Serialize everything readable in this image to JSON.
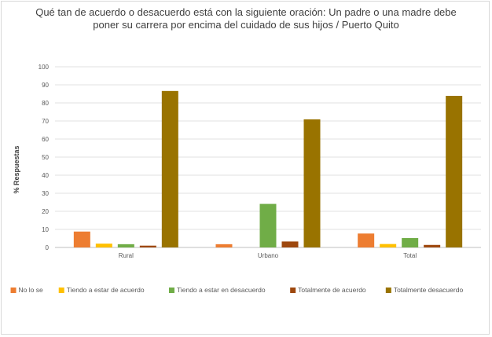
{
  "chart_data": {
    "type": "bar",
    "title": "Qué tan de acuerdo o desacuerdo está con la siguiente oración: Un padre o una madre debe poner su carrera por encima del cuidado de sus hijos / Puerto Quito",
    "xlabel": "",
    "ylabel": "% Respuestas",
    "ylim": [
      0,
      100
    ],
    "yticks": [
      0,
      10,
      20,
      30,
      40,
      50,
      60,
      70,
      80,
      90,
      100
    ],
    "grid": true,
    "legend_position": "bottom",
    "categories": [
      "Rural",
      "Urbano",
      "Total"
    ],
    "series": [
      {
        "name": "No lo se",
        "color": "#ed7d31",
        "values": [
          8.8,
          1.8,
          7.7
        ]
      },
      {
        "name": "Tiendo a estar de acuerdo",
        "color": "#ffc000",
        "values": [
          2.1,
          0,
          1.9
        ]
      },
      {
        "name": "Tiendo a estar en desacuerdo",
        "color": "#70ad47",
        "values": [
          1.8,
          24.1,
          5.2
        ]
      },
      {
        "name": "Totalmente de acuerdo",
        "color": "#9e480e",
        "values": [
          1.0,
          3.3,
          1.4
        ]
      },
      {
        "name": "Totalmente desacuerdo",
        "color": "#997300",
        "values": [
          86.6,
          70.9,
          83.9
        ]
      }
    ]
  }
}
